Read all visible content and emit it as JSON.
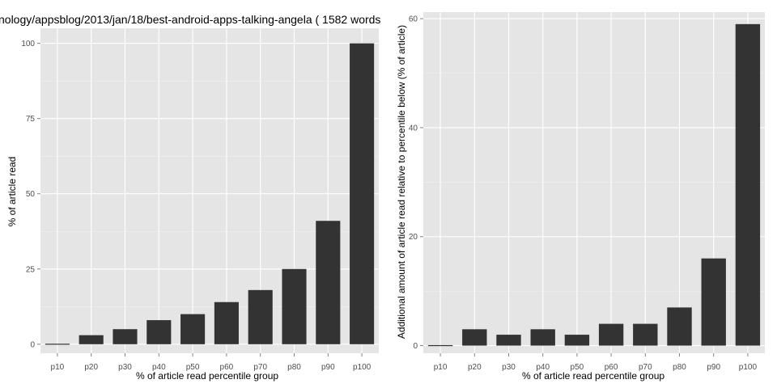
{
  "colors": {
    "panel_bg": "#e5e5e5",
    "grid_major": "#ffffff",
    "grid_minor": "#f2f2f2",
    "bar": "#333333"
  },
  "chart_data": [
    {
      "type": "bar",
      "title": "nology/appsblog/2013/jan/18/best-android-apps-talking-angela ( 1582 words",
      "xlabel": "% of article read percentile group",
      "ylabel": "% of article read",
      "categories": [
        "p10",
        "p20",
        "p30",
        "p40",
        "p50",
        "p60",
        "p70",
        "p80",
        "p90",
        "p100"
      ],
      "values": [
        0,
        3,
        5,
        8,
        10,
        14,
        18,
        25,
        41,
        100
      ],
      "ylim": [
        -3,
        105
      ],
      "yticks": [
        0,
        25,
        50,
        75,
        100
      ],
      "grid": true
    },
    {
      "type": "bar",
      "title": "",
      "xlabel": "% of article read percentile group",
      "ylabel": "Additional amount of article read relative to percentile below (% of article)",
      "categories": [
        "p10",
        "p20",
        "p30",
        "p40",
        "p50",
        "p60",
        "p70",
        "p80",
        "p90",
        "p100"
      ],
      "values": [
        0,
        3,
        2,
        3,
        2,
        4,
        4,
        7,
        16,
        59
      ],
      "ylim": [
        -1.4,
        61.2
      ],
      "yticks": [
        0,
        20,
        40,
        60
      ],
      "grid": true
    }
  ]
}
